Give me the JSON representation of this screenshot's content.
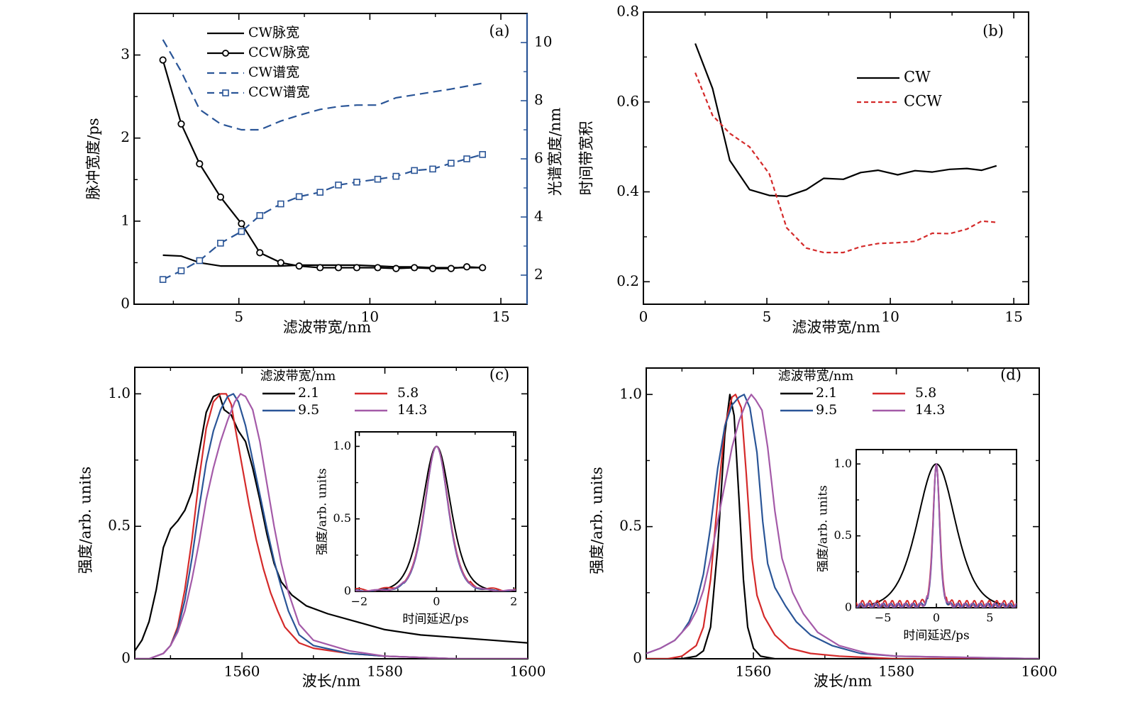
{
  "colors": {
    "black": "#000000",
    "blue": "#2b4f8f",
    "red": "#d42a2a",
    "dark_blue": "#2a5597",
    "purple": "#a45aa8",
    "right_axis": "#2a5597"
  },
  "chart_data": [
    {
      "id": "a",
      "type": "line",
      "panel_label": "(a)",
      "xlabel": "滤波带宽/nm",
      "ylabel": "脉冲宽度/ps",
      "y2label": "光谱宽度/nm",
      "xlim": [
        1,
        16
      ],
      "ylim": [
        0,
        3.5
      ],
      "y2lim": [
        1,
        11
      ],
      "xticks": [
        5,
        10,
        15
      ],
      "xminor": [
        2.5,
        7.5,
        12.5
      ],
      "yticks": [
        0,
        1,
        2,
        3
      ],
      "yminor": [
        0.5,
        1.5,
        2.5
      ],
      "y2ticks": [
        2,
        4,
        6,
        8,
        10
      ],
      "y2minor": [
        3,
        5,
        7,
        9
      ],
      "legend_position": "top-left",
      "series": [
        {
          "name": "CW脉宽",
          "axis": "left",
          "style": "solid",
          "color": "#000000",
          "marker": "none",
          "x": [
            2.1,
            2.8,
            3.5,
            4.3,
            5.1,
            5.8,
            6.6,
            7.3,
            8.1,
            8.8,
            9.5,
            10.3,
            11.0,
            11.7,
            12.4,
            13.1,
            13.7,
            14.3
          ],
          "y": [
            0.59,
            0.58,
            0.5,
            0.46,
            0.46,
            0.46,
            0.46,
            0.47,
            0.47,
            0.47,
            0.47,
            0.46,
            0.45,
            0.45,
            0.44,
            0.44,
            0.44,
            0.44
          ]
        },
        {
          "name": "CCW脉宽",
          "axis": "left",
          "style": "solid",
          "color": "#000000",
          "marker": "circle",
          "x": [
            2.1,
            2.8,
            3.5,
            4.3,
            5.1,
            5.8,
            6.6,
            7.3,
            8.1,
            8.8,
            9.5,
            10.3,
            11.0,
            11.7,
            12.4,
            13.1,
            13.7,
            14.3
          ],
          "y": [
            2.94,
            2.17,
            1.69,
            1.29,
            0.97,
            0.62,
            0.5,
            0.46,
            0.44,
            0.44,
            0.44,
            0.44,
            0.43,
            0.44,
            0.43,
            0.43,
            0.45,
            0.44
          ]
        },
        {
          "name": "CW谱宽",
          "axis": "right",
          "style": "dashed",
          "color": "#2a5597",
          "marker": "none",
          "x": [
            2.1,
            2.8,
            3.5,
            4.3,
            5.1,
            5.8,
            6.6,
            7.3,
            8.1,
            8.8,
            9.5,
            10.3,
            11.0,
            11.7,
            12.4,
            13.1,
            13.7,
            14.3
          ],
          "y": [
            10.1,
            9.0,
            7.7,
            7.2,
            7.0,
            7.0,
            7.3,
            7.5,
            7.7,
            7.8,
            7.85,
            7.85,
            8.1,
            8.2,
            8.3,
            8.4,
            8.5,
            8.6
          ]
        },
        {
          "name": "CCW谱宽",
          "axis": "right",
          "style": "dashed",
          "color": "#2a5597",
          "marker": "square",
          "x": [
            2.1,
            2.8,
            3.5,
            4.3,
            5.1,
            5.8,
            6.6,
            7.3,
            8.1,
            8.8,
            9.5,
            10.3,
            11.0,
            11.7,
            12.4,
            13.1,
            13.7,
            14.3
          ],
          "y": [
            1.85,
            2.15,
            2.5,
            3.1,
            3.5,
            4.05,
            4.45,
            4.7,
            4.85,
            5.1,
            5.2,
            5.3,
            5.4,
            5.6,
            5.65,
            5.85,
            6.0,
            6.15
          ]
        }
      ]
    },
    {
      "id": "b",
      "type": "line",
      "panel_label": "(b)",
      "xlabel": "滤波带宽/nm",
      "ylabel": "时间带宽积",
      "xlim": [
        0,
        15.6
      ],
      "ylim": [
        0.15,
        0.8
      ],
      "xticks": [
        0,
        5,
        10,
        15
      ],
      "xminor": [
        2.5,
        7.5,
        12.5
      ],
      "yticks": [
        0.2,
        0.4,
        0.6,
        0.8
      ],
      "yticklabels": [
        "0.2",
        "0.4",
        "0.6",
        "0.8"
      ],
      "yminor": [
        0.3,
        0.5,
        0.7
      ],
      "legend_position": "top-right",
      "series": [
        {
          "name": "CW",
          "style": "solid",
          "color": "#000000",
          "x": [
            2.1,
            2.8,
            3.5,
            4.3,
            5.1,
            5.8,
            6.6,
            7.3,
            8.1,
            8.8,
            9.5,
            10.3,
            11.0,
            11.7,
            12.4,
            13.1,
            13.7,
            14.3
          ],
          "y": [
            0.73,
            0.63,
            0.47,
            0.405,
            0.392,
            0.39,
            0.405,
            0.43,
            0.428,
            0.443,
            0.448,
            0.438,
            0.447,
            0.444,
            0.45,
            0.452,
            0.448,
            0.458
          ]
        },
        {
          "name": "CCW",
          "style": "dashed",
          "color": "#d42a2a",
          "x": [
            2.1,
            2.8,
            3.5,
            4.3,
            5.1,
            5.8,
            6.6,
            7.3,
            8.1,
            8.8,
            9.5,
            10.3,
            11.0,
            11.7,
            12.4,
            13.1,
            13.7,
            14.3
          ],
          "y": [
            0.665,
            0.57,
            0.53,
            0.5,
            0.44,
            0.32,
            0.275,
            0.265,
            0.265,
            0.278,
            0.285,
            0.287,
            0.29,
            0.308,
            0.307,
            0.317,
            0.335,
            0.332
          ]
        }
      ]
    },
    {
      "id": "c",
      "type": "line",
      "panel_label": "(c)",
      "xlabel": "波长/nm",
      "ylabel": "强度/arb. units",
      "xlim": [
        1545,
        1600
      ],
      "ylim": [
        0,
        1.1
      ],
      "xticks": [
        1560,
        1580,
        1600
      ],
      "xminor": [
        1550,
        1570,
        1590
      ],
      "yticks": [
        0,
        0.5,
        1.0
      ],
      "yticklabels": [
        "0",
        "0.5",
        "1.0"
      ],
      "yminor": [
        0.25,
        0.75
      ],
      "legend_title": "滤波带宽/nm",
      "legend_position": "top-center",
      "series": [
        {
          "name": "2.1",
          "color": "#000000",
          "x": [
            1545,
            1546,
            1547,
            1548,
            1549,
            1550,
            1551,
            1552,
            1553,
            1554,
            1555,
            1556,
            1556.8,
            1557.5,
            1558.5,
            1559.5,
            1560.5,
            1561.5,
            1562.5,
            1563.5,
            1564.5,
            1565.5,
            1567,
            1569,
            1572,
            1576,
            1580,
            1585,
            1590,
            1595,
            1600
          ],
          "y": [
            0.03,
            0.07,
            0.14,
            0.26,
            0.42,
            0.49,
            0.52,
            0.56,
            0.63,
            0.78,
            0.93,
            0.99,
            1.0,
            0.94,
            0.92,
            0.86,
            0.82,
            0.72,
            0.6,
            0.47,
            0.36,
            0.29,
            0.24,
            0.2,
            0.17,
            0.14,
            0.11,
            0.09,
            0.08,
            0.07,
            0.06
          ]
        },
        {
          "name": "5.8",
          "color": "#d42a2a",
          "x": [
            1545,
            1547,
            1549,
            1550,
            1551,
            1552,
            1553,
            1554,
            1555,
            1556,
            1557,
            1557.8,
            1558.5,
            1559,
            1560,
            1561,
            1562,
            1563,
            1564,
            1565,
            1566,
            1568,
            1570,
            1575,
            1580,
            1590,
            1600
          ],
          "y": [
            0.0,
            0.0,
            0.02,
            0.05,
            0.12,
            0.26,
            0.45,
            0.68,
            0.87,
            0.97,
            1.0,
            1.0,
            0.96,
            0.88,
            0.73,
            0.58,
            0.45,
            0.34,
            0.25,
            0.18,
            0.12,
            0.06,
            0.04,
            0.02,
            0.01,
            0.0,
            0.0
          ]
        },
        {
          "name": "9.5",
          "color": "#2a5597",
          "x": [
            1545,
            1547,
            1549,
            1550,
            1551,
            1552,
            1553,
            1554,
            1555,
            1556,
            1557,
            1558,
            1558.8,
            1559.5,
            1560.5,
            1561.5,
            1562.5,
            1563.5,
            1564.5,
            1565.5,
            1566.5,
            1568,
            1570,
            1575,
            1580,
            1590,
            1600
          ],
          "y": [
            0.0,
            0.0,
            0.02,
            0.05,
            0.11,
            0.22,
            0.38,
            0.57,
            0.74,
            0.86,
            0.94,
            0.99,
            1.0,
            0.97,
            0.88,
            0.75,
            0.62,
            0.49,
            0.37,
            0.27,
            0.18,
            0.09,
            0.05,
            0.02,
            0.01,
            0.0,
            0.0
          ]
        },
        {
          "name": "14.3",
          "color": "#a45aa8",
          "x": [
            1545,
            1547,
            1549,
            1550,
            1551,
            1552,
            1553,
            1554,
            1555,
            1556,
            1557,
            1558,
            1559,
            1559.8,
            1560.5,
            1561.5,
            1562.5,
            1563.5,
            1564.5,
            1565.5,
            1566.5,
            1568,
            1570,
            1575,
            1580,
            1590,
            1600
          ],
          "y": [
            0.0,
            0.0,
            0.02,
            0.05,
            0.1,
            0.18,
            0.3,
            0.44,
            0.6,
            0.72,
            0.82,
            0.9,
            0.97,
            1.0,
            0.99,
            0.94,
            0.82,
            0.66,
            0.5,
            0.36,
            0.25,
            0.13,
            0.07,
            0.03,
            0.01,
            0.0,
            0.0
          ]
        }
      ],
      "inset": {
        "xlabel": "时间延迟/ps",
        "ylabel": "强度/arb. units",
        "xlim": [
          -2.1,
          2.05
        ],
        "ylim": [
          0,
          1.1
        ],
        "xticks": [
          -2,
          0,
          2
        ],
        "xticklabels": [
          "−2",
          "0",
          "2"
        ],
        "xminor": [
          -1,
          1
        ],
        "yticks": [
          0,
          0.5,
          1.0
        ],
        "yticklabels": [
          "0",
          "0.5",
          "1.0"
        ],
        "yminor": [
          0.25,
          0.75
        ],
        "series": [
          {
            "name": "2.1",
            "color": "#000000",
            "fwhm": 0.86,
            "ripple": 0.0
          },
          {
            "name": "5.8",
            "color": "#d42a2a",
            "fwhm": 0.72,
            "ripple": 0.02
          },
          {
            "name": "9.5",
            "color": "#2a5597",
            "fwhm": 0.7,
            "ripple": 0.01
          },
          {
            "name": "14.3",
            "color": "#a45aa8",
            "fwhm": 0.71,
            "ripple": 0.01
          }
        ]
      }
    },
    {
      "id": "d",
      "type": "line",
      "panel_label": "(d)",
      "xlabel": "波长/nm",
      "ylabel": "强度/arb. units",
      "xlim": [
        1545,
        1600
      ],
      "ylim": [
        0,
        1.1
      ],
      "xticks": [
        1560,
        1580,
        1600
      ],
      "xminor": [
        1550,
        1570,
        1590
      ],
      "yticks": [
        0,
        0.5,
        1.0
      ],
      "yticklabels": [
        "0",
        "0.5",
        "1.0"
      ],
      "yminor": [
        0.25,
        0.75
      ],
      "legend_title": "滤波带宽/nm",
      "legend_position": "top-center",
      "series": [
        {
          "name": "2.1",
          "color": "#000000",
          "x": [
            1545,
            1550,
            1552,
            1553,
            1554,
            1555,
            1556,
            1556.7,
            1557.3,
            1558,
            1558.6,
            1559.2,
            1560,
            1561,
            1563,
            1570,
            1600
          ],
          "y": [
            0.0,
            0.0,
            0.01,
            0.03,
            0.12,
            0.42,
            0.85,
            1.0,
            0.92,
            0.6,
            0.3,
            0.12,
            0.04,
            0.01,
            0.0,
            0.0,
            0.0
          ]
        },
        {
          "name": "5.8",
          "color": "#d42a2a",
          "x": [
            1545,
            1548,
            1550,
            1552,
            1553,
            1554,
            1555,
            1556,
            1557,
            1557.5,
            1558.3,
            1559,
            1559.8,
            1560.5,
            1561.5,
            1563,
            1565,
            1568,
            1572,
            1580,
            1600
          ],
          "y": [
            0.0,
            0.0,
            0.01,
            0.05,
            0.12,
            0.3,
            0.6,
            0.88,
            0.99,
            1.0,
            0.95,
            0.7,
            0.38,
            0.24,
            0.16,
            0.09,
            0.04,
            0.02,
            0.01,
            0.0,
            0.0
          ]
        },
        {
          "name": "9.5",
          "color": "#2a5597",
          "x": [
            1545,
            1547,
            1549,
            1550,
            1551,
            1552,
            1553,
            1554,
            1555,
            1556,
            1557,
            1558,
            1558.7,
            1559.5,
            1560.5,
            1561.3,
            1562,
            1563,
            1564.5,
            1566,
            1568,
            1571,
            1575,
            1580,
            1600
          ],
          "y": [
            0.02,
            0.04,
            0.07,
            0.1,
            0.14,
            0.21,
            0.32,
            0.5,
            0.72,
            0.88,
            0.96,
            0.99,
            1.0,
            0.95,
            0.78,
            0.52,
            0.36,
            0.27,
            0.2,
            0.14,
            0.09,
            0.05,
            0.02,
            0.01,
            0.0
          ]
        },
        {
          "name": "14.3",
          "color": "#a45aa8",
          "x": [
            1545,
            1547,
            1549,
            1550,
            1551,
            1552,
            1553,
            1554,
            1555,
            1556,
            1557,
            1558,
            1559,
            1559.7,
            1560.3,
            1561.2,
            1562,
            1563,
            1564,
            1565.5,
            1567,
            1569,
            1572,
            1576,
            1580,
            1600
          ],
          "y": [
            0.02,
            0.04,
            0.07,
            0.1,
            0.13,
            0.18,
            0.26,
            0.38,
            0.52,
            0.66,
            0.8,
            0.9,
            0.97,
            1.0,
            0.98,
            0.94,
            0.8,
            0.56,
            0.38,
            0.25,
            0.17,
            0.1,
            0.05,
            0.02,
            0.01,
            0.0
          ]
        }
      ],
      "inset": {
        "xlabel": "时间延迟/ps",
        "ylabel": "强度/arb. units",
        "xlim": [
          -7.5,
          7.5
        ],
        "ylim": [
          0,
          1.1
        ],
        "xticks": [
          -5,
          0,
          5
        ],
        "xticklabels": [
          "−5",
          "0",
          "5"
        ],
        "xminor": [
          -2.5,
          2.5
        ],
        "yticks": [
          0,
          0.5,
          1.0
        ],
        "yticklabels": [
          "0",
          "0.5",
          "1.0"
        ],
        "yminor": [
          0.25,
          0.75
        ],
        "series": [
          {
            "name": "2.1",
            "color": "#000000",
            "fwhm": 4.2,
            "ripple": 0.0
          },
          {
            "name": "5.8",
            "color": "#d42a2a",
            "fwhm": 0.75,
            "ripple": 0.05
          },
          {
            "name": "9.5",
            "color": "#2a5597",
            "fwhm": 0.7,
            "ripple": 0.03
          },
          {
            "name": "14.3",
            "color": "#a45aa8",
            "fwhm": 0.72,
            "ripple": 0.03
          }
        ]
      }
    }
  ]
}
